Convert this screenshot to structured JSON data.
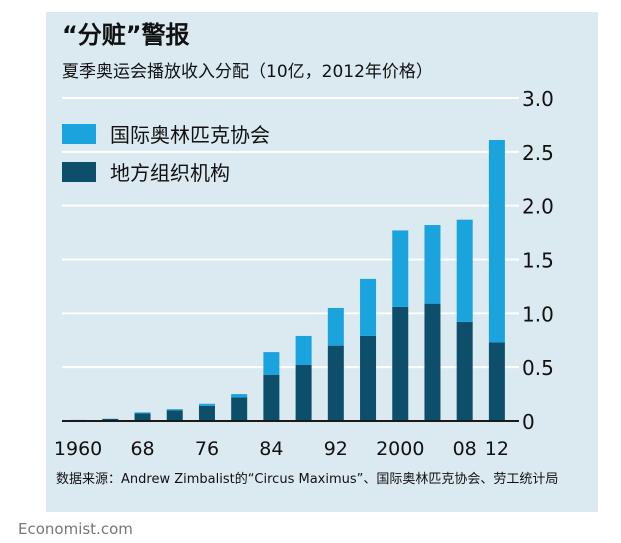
{
  "title": "“分赃”警报",
  "subtitle": "夏季奥运会播放收入分配（10亿，2012年价格）",
  "source": "数据来源：Andrew Zimbalist的“Circus Maximus”、国际奥林匹克协会、劳工统计局",
  "brand": "Economist.com",
  "colors": {
    "background": "#dbe9f1",
    "ioc": "#1ba3de",
    "local": "#0d4f6b",
    "grid": "#ffffff",
    "axis": "#1a1a1a"
  },
  "chart_data": {
    "type": "bar",
    "stacked": true,
    "categories": [
      "1960",
      "1964",
      "1968",
      "1972",
      "1976",
      "1980",
      "1984",
      "1988",
      "1992",
      "1996",
      "2000",
      "2004",
      "2008",
      "2012"
    ],
    "xtick_labels": [
      "1960",
      "",
      "68",
      "",
      "76",
      "",
      "84",
      "",
      "92",
      "",
      "2000",
      "",
      "08",
      "12"
    ],
    "series": [
      {
        "name": "地方组织机构",
        "values": [
          0.01,
          0.02,
          0.07,
          0.1,
          0.14,
          0.22,
          0.43,
          0.52,
          0.7,
          0.79,
          1.06,
          1.09,
          0.92,
          0.73
        ]
      },
      {
        "name": "国际奥林匹克协会",
        "values": [
          0.0,
          0.0,
          0.01,
          0.01,
          0.02,
          0.03,
          0.21,
          0.27,
          0.35,
          0.53,
          0.71,
          0.73,
          0.95,
          1.88
        ]
      }
    ],
    "legend": [
      "国际奥林匹克协会",
      "地方组织机构"
    ],
    "legend_position": "top-left",
    "ylim": [
      0,
      3.0
    ],
    "yticks": [
      "0",
      "0.5",
      "1.0",
      "1.5",
      "2.0",
      "2.5",
      "3.0"
    ],
    "ytick_values": [
      0,
      0.5,
      1.0,
      1.5,
      2.0,
      2.5,
      3.0
    ],
    "y_axis_side": "right",
    "grid": true
  }
}
